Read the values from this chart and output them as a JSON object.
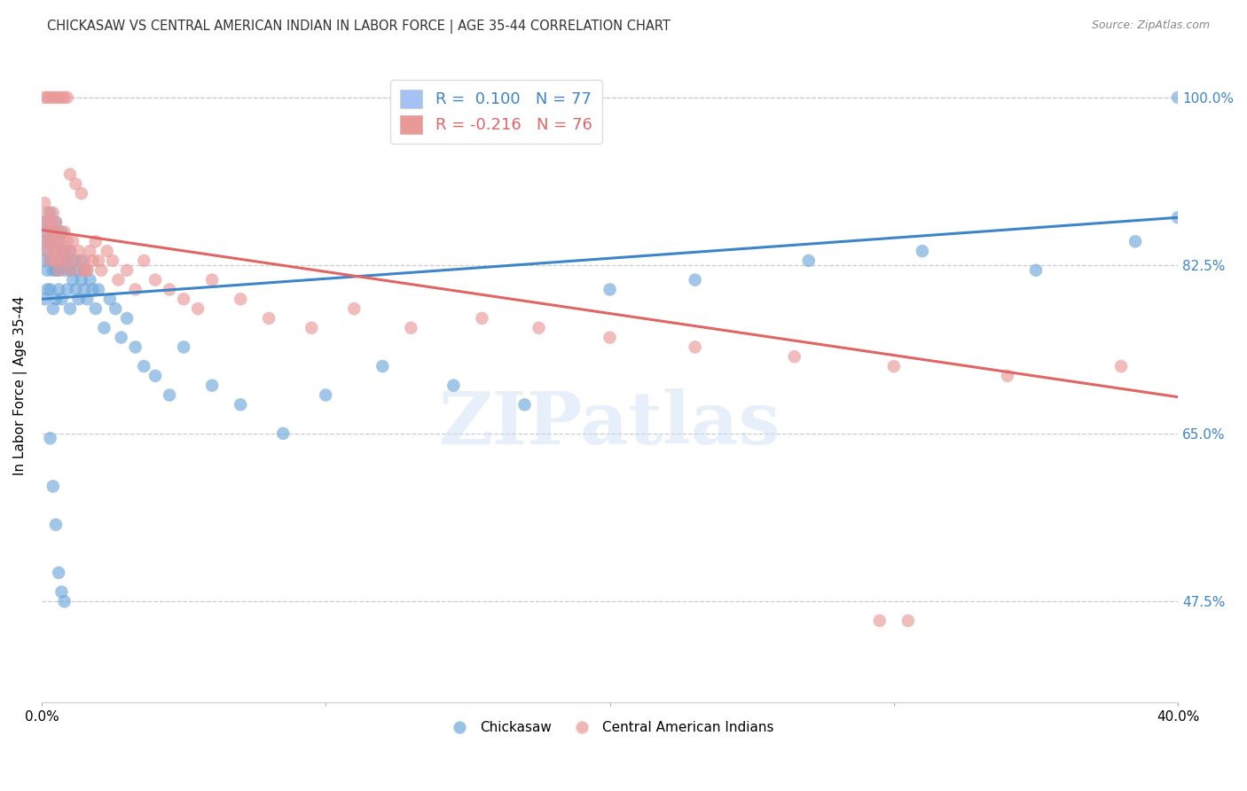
{
  "title": "CHICKASAW VS CENTRAL AMERICAN INDIAN IN LABOR FORCE | AGE 35-44 CORRELATION CHART",
  "source": "Source: ZipAtlas.com",
  "ylabel": "In Labor Force | Age 35-44",
  "ytick_values": [
    0.475,
    0.65,
    0.825,
    1.0
  ],
  "ytick_labels": [
    "47.5%",
    "65.0%",
    "82.5%",
    "100.0%"
  ],
  "xmin": 0.0,
  "xmax": 0.4,
  "ymin": 0.37,
  "ymax": 1.03,
  "blue_color": "#6fa8dc",
  "pink_color": "#ea9999",
  "blue_line_color": "#3d85c8",
  "pink_line_color": "#e06666",
  "legend_blue_box": "#a4c2f4",
  "legend_pink_box": "#ea9999",
  "watermark": "ZIPatlas",
  "background_color": "#ffffff",
  "grid_color": "#cccccc",
  "blue_line_y0": 0.79,
  "blue_line_y1": 0.875,
  "pink_line_y0": 0.862,
  "pink_line_y1": 0.688,
  "chickasaw_x": [
    0.001,
    0.001,
    0.001,
    0.001,
    0.002,
    0.002,
    0.002,
    0.002,
    0.003,
    0.003,
    0.003,
    0.003,
    0.004,
    0.004,
    0.004,
    0.005,
    0.005,
    0.005,
    0.005,
    0.006,
    0.006,
    0.006,
    0.007,
    0.007,
    0.007,
    0.008,
    0.008,
    0.009,
    0.009,
    0.01,
    0.01,
    0.01,
    0.011,
    0.011,
    0.012,
    0.012,
    0.013,
    0.014,
    0.014,
    0.015,
    0.015,
    0.016,
    0.017,
    0.018,
    0.019,
    0.02,
    0.022,
    0.024,
    0.026,
    0.028,
    0.03,
    0.033,
    0.036,
    0.04,
    0.045,
    0.05,
    0.06,
    0.07,
    0.085,
    0.1,
    0.12,
    0.145,
    0.17,
    0.2,
    0.23,
    0.27,
    0.31,
    0.35,
    0.385,
    0.4,
    0.003,
    0.004,
    0.005,
    0.006,
    0.007,
    0.008,
    0.4
  ],
  "chickasaw_y": [
    0.85,
    0.83,
    0.87,
    0.79,
    0.82,
    0.86,
    0.84,
    0.8,
    0.83,
    0.85,
    0.88,
    0.8,
    0.82,
    0.86,
    0.78,
    0.84,
    0.82,
    0.79,
    0.87,
    0.82,
    0.85,
    0.8,
    0.83,
    0.86,
    0.79,
    0.82,
    0.84,
    0.8,
    0.83,
    0.82,
    0.78,
    0.84,
    0.81,
    0.83,
    0.8,
    0.82,
    0.79,
    0.83,
    0.81,
    0.8,
    0.82,
    0.79,
    0.81,
    0.8,
    0.78,
    0.8,
    0.76,
    0.79,
    0.78,
    0.75,
    0.77,
    0.74,
    0.72,
    0.71,
    0.69,
    0.74,
    0.7,
    0.68,
    0.65,
    0.69,
    0.72,
    0.7,
    0.68,
    0.8,
    0.81,
    0.83,
    0.84,
    0.82,
    0.85,
    0.875,
    0.645,
    0.595,
    0.555,
    0.505,
    0.485,
    0.475,
    1.0
  ],
  "central_x": [
    0.001,
    0.001,
    0.001,
    0.002,
    0.002,
    0.002,
    0.003,
    0.003,
    0.003,
    0.004,
    0.004,
    0.004,
    0.005,
    0.005,
    0.005,
    0.006,
    0.006,
    0.006,
    0.007,
    0.007,
    0.008,
    0.008,
    0.009,
    0.009,
    0.01,
    0.01,
    0.011,
    0.012,
    0.013,
    0.014,
    0.015,
    0.016,
    0.017,
    0.018,
    0.019,
    0.02,
    0.021,
    0.023,
    0.025,
    0.027,
    0.03,
    0.033,
    0.036,
    0.04,
    0.045,
    0.05,
    0.055,
    0.06,
    0.07,
    0.08,
    0.095,
    0.11,
    0.13,
    0.155,
    0.175,
    0.2,
    0.23,
    0.265,
    0.3,
    0.34,
    0.38,
    0.001,
    0.002,
    0.003,
    0.004,
    0.005,
    0.006,
    0.007,
    0.008,
    0.009,
    0.01,
    0.012,
    0.014,
    0.016,
    0.295,
    0.305
  ],
  "central_y": [
    0.87,
    0.85,
    0.89,
    0.86,
    0.88,
    0.84,
    0.87,
    0.85,
    0.83,
    0.86,
    0.84,
    0.88,
    0.85,
    0.87,
    0.83,
    0.86,
    0.84,
    0.82,
    0.85,
    0.83,
    0.86,
    0.84,
    0.85,
    0.83,
    0.84,
    0.82,
    0.85,
    0.83,
    0.84,
    0.82,
    0.83,
    0.82,
    0.84,
    0.83,
    0.85,
    0.83,
    0.82,
    0.84,
    0.83,
    0.81,
    0.82,
    0.8,
    0.83,
    0.81,
    0.8,
    0.79,
    0.78,
    0.81,
    0.79,
    0.77,
    0.76,
    0.78,
    0.76,
    0.77,
    0.76,
    0.75,
    0.74,
    0.73,
    0.72,
    0.71,
    0.72,
    1.0,
    1.0,
    1.0,
    1.0,
    1.0,
    1.0,
    1.0,
    1.0,
    1.0,
    0.92,
    0.91,
    0.9,
    0.82,
    0.455,
    0.455
  ]
}
